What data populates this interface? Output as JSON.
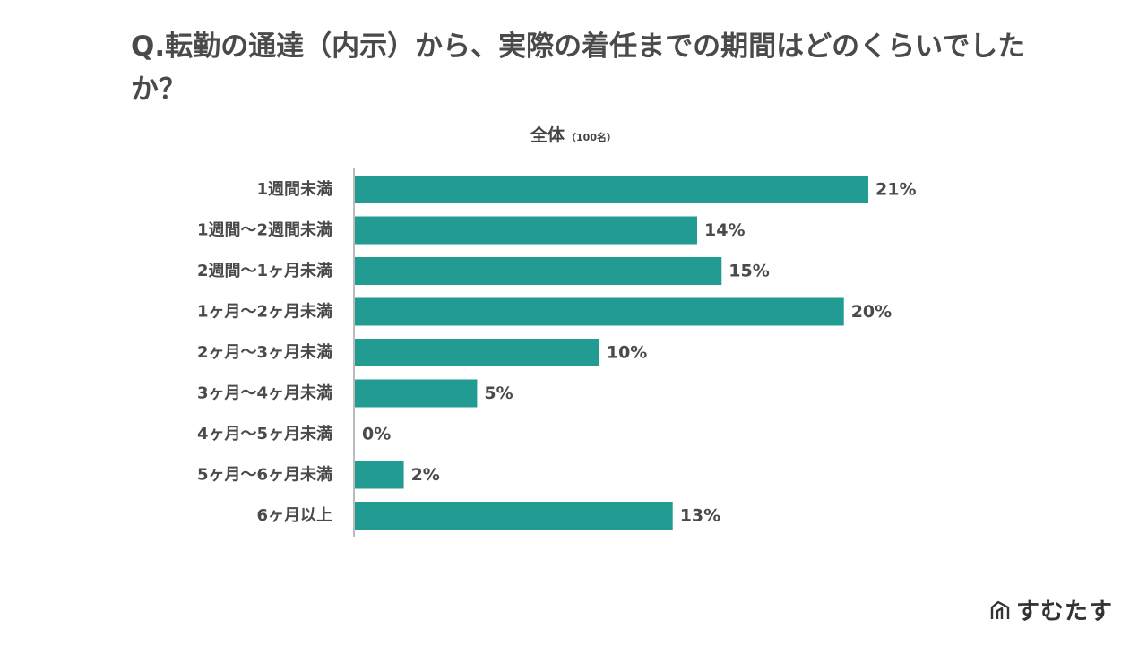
{
  "header": {
    "title": "Q.転勤の通達（内示）から、実際の着任までの期間はどのくらいでしたか？",
    "subtitle": "全体",
    "subtitle_note": "（100名）"
  },
  "brand": {
    "name": "すむたす",
    "logo_icon": "house-logo-icon"
  },
  "colors": {
    "bar": "#229c93",
    "axis": "#bbbbbb",
    "text": "#4a4a4a"
  },
  "chart_data": {
    "type": "bar",
    "orientation": "horizontal",
    "categories": [
      "1週間未満",
      "1週間〜2週間未満",
      "2週間〜1ヶ月未満",
      "1ヶ月〜2ヶ月未満",
      "2ヶ月〜3ヶ月未満",
      "3ヶ月〜4ヶ月未満",
      "4ヶ月〜5ヶ月未満",
      "5ヶ月〜6ヶ月未満",
      "6ヶ月以上"
    ],
    "values": [
      21,
      14,
      15,
      20,
      10,
      5,
      0,
      2,
      13
    ],
    "value_labels": [
      "21%",
      "14%",
      "15%",
      "20%",
      "10%",
      "5%",
      "0%",
      "2%",
      "13%"
    ],
    "unit": "%",
    "xlim": [
      0,
      21
    ],
    "grid": false,
    "legend": "none"
  }
}
